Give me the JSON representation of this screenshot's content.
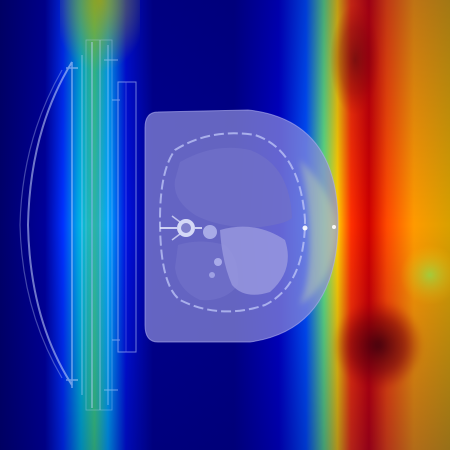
{
  "image": {
    "subject": "ct-axial-slice-with-heatmap-overlay",
    "colormap": "jet",
    "colors": {
      "cold": "#00007f",
      "cool": "#0000ff",
      "mid": "#00b4ff",
      "warm": "#f5e600",
      "hot": "#e83000",
      "very_hot": "#6a0000"
    }
  }
}
